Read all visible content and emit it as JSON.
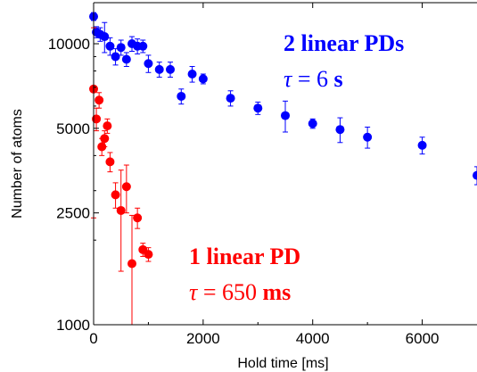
{
  "chart_data": {
    "type": "scatter",
    "title": "",
    "xlabel": "Hold time [ms]",
    "ylabel": "Number of atoms",
    "xlim": [
      0,
      7000
    ],
    "ylim": [
      1000,
      14000
    ],
    "yscale": "log",
    "x_ticks": [
      0,
      2000,
      4000,
      6000
    ],
    "y_ticks": [
      1000,
      2500,
      5000,
      10000
    ],
    "x_tick_labels": [
      "0",
      "2000",
      "4000",
      "6000"
    ],
    "y_tick_labels": [
      "1000",
      "2500",
      "5000",
      "10000"
    ],
    "grid": false,
    "legend": "none",
    "series": [
      {
        "color": "#0000ff",
        "points": [
          {
            "x": 0,
            "y": 12500,
            "err": 400
          },
          {
            "x": 50,
            "y": 11000,
            "err": 500
          },
          {
            "x": 120,
            "y": 10800,
            "err": 600
          },
          {
            "x": 200,
            "y": 10600,
            "err": 1300
          },
          {
            "x": 300,
            "y": 9800,
            "err": 700
          },
          {
            "x": 400,
            "y": 9000,
            "err": 600
          },
          {
            "x": 500,
            "y": 9700,
            "err": 600
          },
          {
            "x": 600,
            "y": 8800,
            "err": 500
          },
          {
            "x": 700,
            "y": 10000,
            "err": 600
          },
          {
            "x": 800,
            "y": 9800,
            "err": 600
          },
          {
            "x": 900,
            "y": 9800,
            "err": 500
          },
          {
            "x": 1000,
            "y": 8500,
            "err": 600
          },
          {
            "x": 1200,
            "y": 8100,
            "err": 500
          },
          {
            "x": 1400,
            "y": 8100,
            "err": 500
          },
          {
            "x": 1600,
            "y": 6500,
            "err": 400
          },
          {
            "x": 1800,
            "y": 7800,
            "err": 500
          },
          {
            "x": 2000,
            "y": 7500,
            "err": 300
          },
          {
            "x": 2500,
            "y": 6400,
            "err": 400
          },
          {
            "x": 3000,
            "y": 5900,
            "err": 300
          },
          {
            "x": 3500,
            "y": 5550,
            "err": 700
          },
          {
            "x": 4000,
            "y": 5200,
            "err": 200
          },
          {
            "x": 4500,
            "y": 4950,
            "err": 500
          },
          {
            "x": 5000,
            "y": 4650,
            "err": 400
          },
          {
            "x": 6000,
            "y": 4350,
            "err": 300
          },
          {
            "x": 7000,
            "y": 3400,
            "err": 250
          }
        ]
      },
      {
        "color": "#ff0000",
        "points": [
          {
            "x": 0,
            "y": 6900,
            "err": 4500
          },
          {
            "x": 50,
            "y": 5400,
            "err": 500
          },
          {
            "x": 100,
            "y": 6300,
            "err": 400
          },
          {
            "x": 150,
            "y": 4300,
            "err": 300
          },
          {
            "x": 200,
            "y": 4600,
            "err": 300
          },
          {
            "x": 250,
            "y": 5100,
            "err": 300
          },
          {
            "x": 300,
            "y": 3800,
            "err": 300
          },
          {
            "x": 400,
            "y": 2900,
            "err": 300
          },
          {
            "x": 500,
            "y": 2550,
            "err": 1000
          },
          {
            "x": 600,
            "y": 3100,
            "err": 600
          },
          {
            "x": 700,
            "y": 1650,
            "err": 800
          },
          {
            "x": 800,
            "y": 2400,
            "err": 200
          },
          {
            "x": 900,
            "y": 1850,
            "err": 100
          },
          {
            "x": 1000,
            "y": 1780,
            "err": 100
          }
        ]
      }
    ],
    "annotations": [
      {
        "id": "blue-title",
        "text": "2 linear PDs",
        "color": "#0000ff"
      },
      {
        "id": "blue-tau",
        "symbol": "τ",
        "eq": " = 6 ",
        "unit": "s",
        "color": "#0000ff"
      },
      {
        "id": "red-title",
        "text": "1 linear PD",
        "color": "#ff0000"
      },
      {
        "id": "red-tau",
        "symbol": "τ",
        "eq": " = 650 ",
        "unit": "ms",
        "color": "#ff0000"
      }
    ]
  }
}
